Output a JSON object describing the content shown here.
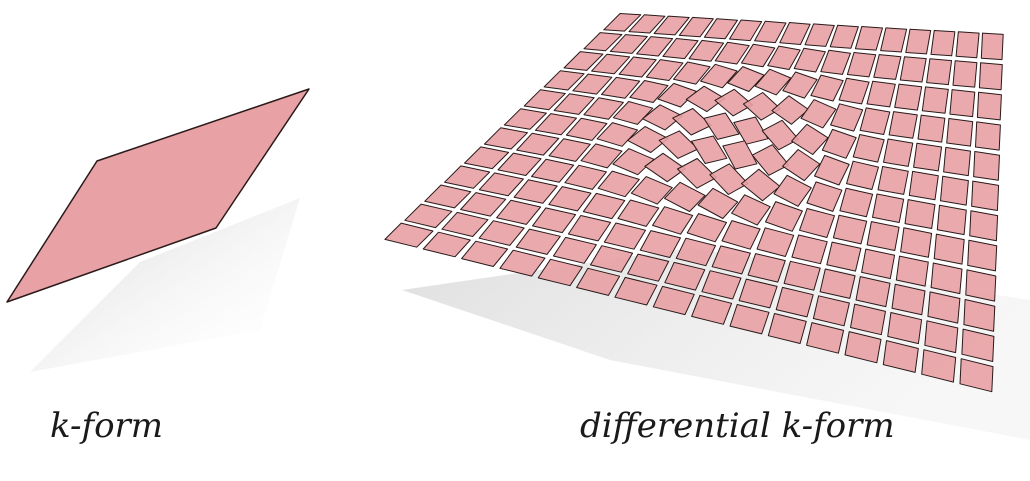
{
  "captions": {
    "left": "k-form",
    "right": "differential k-form"
  },
  "grid": {
    "rows": 12,
    "cols": 16,
    "swirl_turns_deg": 55
  },
  "colors": {
    "fill": "#e8a1a4",
    "stroke": "#2a1a1a",
    "shadow": "#d6d6d6"
  }
}
